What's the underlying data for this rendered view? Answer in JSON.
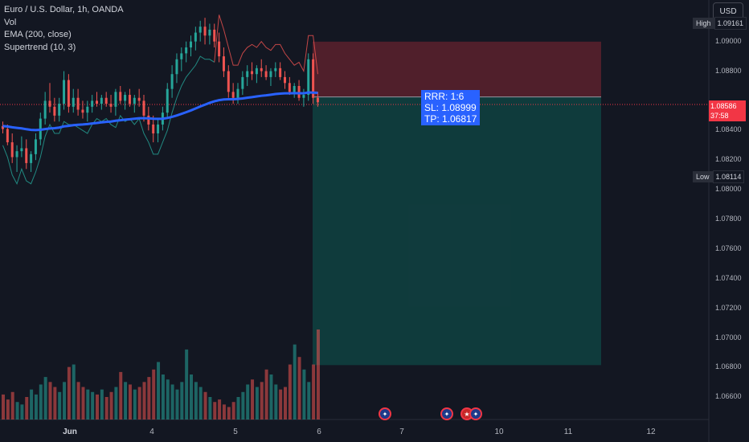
{
  "legend": {
    "symbol": "Euro / U.S. Dollar, 1h, OANDA",
    "vol": "Vol",
    "ema": "EMA (200, close)",
    "supertrend": "Supertrend (10, 3)"
  },
  "currency_button": "USD",
  "high_badge": {
    "label": "High",
    "value": "1.09161"
  },
  "low_badge": {
    "label": "Low",
    "value": "1.08114"
  },
  "price_tag": {
    "price": "1.08586",
    "countdown": "37:58"
  },
  "risk_reward": {
    "rrr": "RRR: 1:6",
    "sl": "SL: 1.08999",
    "tp": "TP: 1.06817"
  },
  "y_axis": {
    "labels": [
      "1.09000",
      "1.08800",
      "1.08400",
      "1.08200",
      "1.08000",
      "1.07800",
      "1.07600",
      "1.07400",
      "1.07200",
      "1.07000",
      "1.06800",
      "1.06600"
    ]
  },
  "x_axis": {
    "labels": [
      {
        "text": "Jun",
        "bold": true
      },
      {
        "text": "4",
        "bold": false
      },
      {
        "text": "5",
        "bold": false
      },
      {
        "text": "6",
        "bold": false
      },
      {
        "text": "7",
        "bold": false
      },
      {
        "text": "10",
        "bold": false
      },
      {
        "text": "11",
        "bold": false
      },
      {
        "text": "12",
        "bold": false
      }
    ]
  },
  "events": [
    {
      "name": "eu-event-icon"
    },
    {
      "name": "eu-event-icon"
    },
    {
      "name": "us-event-icon"
    },
    {
      "name": "eu-event-icon"
    }
  ],
  "colors": {
    "up": "#26a69a",
    "down": "#ef5350",
    "ema": "#2962ff",
    "stop_zone": "#f23645",
    "target_zone": "#089981",
    "background": "#131722"
  },
  "chart_data": {
    "type": "candlestick",
    "y_range": [
      1.0645,
      1.0928
    ],
    "candles": [
      [
        1.0843,
        1.0846,
        1.0838,
        1.0841
      ],
      [
        1.0841,
        1.0844,
        1.083,
        1.0832
      ],
      [
        1.0832,
        1.0838,
        1.0818,
        1.0822
      ],
      [
        1.0822,
        1.083,
        1.0812,
        1.0826
      ],
      [
        1.0826,
        1.0836,
        1.0822,
        1.0828
      ],
      [
        1.0828,
        1.0834,
        1.0814,
        1.0818
      ],
      [
        1.0818,
        1.0826,
        1.0812,
        1.0824
      ],
      [
        1.0824,
        1.0838,
        1.082,
        1.0834
      ],
      [
        1.0834,
        1.0852,
        1.083,
        1.0848
      ],
      [
        1.0848,
        1.0866,
        1.0844,
        1.086
      ],
      [
        1.086,
        1.0872,
        1.0852,
        1.0856
      ],
      [
        1.0856,
        1.0862,
        1.0846,
        1.085
      ],
      [
        1.085,
        1.0862,
        1.0846,
        1.0858
      ],
      [
        1.0858,
        1.088,
        1.0854,
        1.0874
      ],
      [
        1.0874,
        1.0878,
        1.0852,
        1.0856
      ],
      [
        1.0856,
        1.0868,
        1.0852,
        1.0862
      ],
      [
        1.0862,
        1.0868,
        1.085,
        1.0854
      ],
      [
        1.0854,
        1.086,
        1.0848,
        1.0852
      ],
      [
        1.0852,
        1.086,
        1.0846,
        1.0856
      ],
      [
        1.0856,
        1.0864,
        1.0852,
        1.086
      ],
      [
        1.086,
        1.0866,
        1.0856,
        1.0858
      ],
      [
        1.0858,
        1.0864,
        1.0854,
        1.0862
      ],
      [
        1.0862,
        1.0866,
        1.0856,
        1.0858
      ],
      [
        1.0858,
        1.0864,
        1.0852,
        1.0856
      ],
      [
        1.0856,
        1.0868,
        1.085,
        1.0866
      ],
      [
        1.0866,
        1.087,
        1.0858,
        1.086
      ],
      [
        1.086,
        1.0866,
        1.0854,
        1.0864
      ],
      [
        1.0864,
        1.0868,
        1.0856,
        1.0858
      ],
      [
        1.0858,
        1.0864,
        1.0852,
        1.0862
      ],
      [
        1.0862,
        1.0868,
        1.0856,
        1.086
      ],
      [
        1.086,
        1.0864,
        1.0846,
        1.085
      ],
      [
        1.085,
        1.0856,
        1.084,
        1.0844
      ],
      [
        1.0844,
        1.085,
        1.0832,
        1.0838
      ],
      [
        1.0838,
        1.0848,
        1.0832,
        1.0844
      ],
      [
        1.0844,
        1.0856,
        1.084,
        1.0852
      ],
      [
        1.0852,
        1.0872,
        1.0848,
        1.0868
      ],
      [
        1.0868,
        1.0884,
        1.0862,
        1.0878
      ],
      [
        1.0878,
        1.0892,
        1.0872,
        1.0888
      ],
      [
        1.0888,
        1.0896,
        1.088,
        1.0892
      ],
      [
        1.0892,
        1.09,
        1.0886,
        1.0896
      ],
      [
        1.0896,
        1.0904,
        1.089,
        1.09
      ],
      [
        1.09,
        1.091,
        1.0894,
        1.0906
      ],
      [
        1.0906,
        1.0914,
        1.09,
        1.091
      ],
      [
        1.091,
        1.0916,
        1.0898,
        1.0904
      ],
      [
        1.0904,
        1.0912,
        1.0898,
        1.0908
      ],
      [
        1.0908,
        1.0912,
        1.0896,
        1.09
      ],
      [
        1.09,
        1.0906,
        1.0886,
        1.089
      ],
      [
        1.089,
        1.0896,
        1.0876,
        1.088
      ],
      [
        1.088,
        1.0884,
        1.0862,
        1.0866
      ],
      [
        1.0866,
        1.0872,
        1.0858,
        1.0862
      ],
      [
        1.0862,
        1.0872,
        1.0858,
        1.0868
      ],
      [
        1.0868,
        1.088,
        1.0864,
        1.0876
      ],
      [
        1.0876,
        1.0884,
        1.087,
        1.088
      ],
      [
        1.088,
        1.0886,
        1.0874,
        1.0878
      ],
      [
        1.0878,
        1.0884,
        1.0872,
        1.0882
      ],
      [
        1.0882,
        1.0888,
        1.0876,
        1.088
      ],
      [
        1.088,
        1.0884,
        1.0874,
        1.0876
      ],
      [
        1.0876,
        1.0882,
        1.087,
        1.088
      ],
      [
        1.088,
        1.0886,
        1.0876,
        1.0882
      ],
      [
        1.0882,
        1.0886,
        1.0874,
        1.0876
      ],
      [
        1.0876,
        1.088,
        1.0868,
        1.0872
      ],
      [
        1.0872,
        1.0876,
        1.0864,
        1.0866
      ],
      [
        1.0866,
        1.0872,
        1.0862,
        1.087
      ],
      [
        1.087,
        1.0874,
        1.086,
        1.0862
      ],
      [
        1.0862,
        1.0868,
        1.0856,
        1.0864
      ],
      [
        1.0864,
        1.0892,
        1.086,
        1.0888
      ],
      [
        1.0888,
        1.0892,
        1.0858,
        1.0862
      ],
      [
        1.0862,
        1.0866,
        1.0856,
        1.0859
      ]
    ],
    "volumes": [
      20,
      16,
      22,
      14,
      12,
      18,
      24,
      20,
      28,
      34,
      30,
      26,
      22,
      30,
      42,
      44,
      30,
      26,
      24,
      22,
      20,
      24,
      18,
      22,
      26,
      38,
      30,
      28,
      24,
      26,
      30,
      34,
      40,
      46,
      36,
      32,
      28,
      24,
      30,
      56,
      36,
      30,
      26,
      22,
      18,
      14,
      16,
      12,
      10,
      14,
      18,
      22,
      28,
      32,
      26,
      30,
      40,
      36,
      28,
      24,
      26,
      44,
      60,
      50,
      40,
      30,
      44,
      72
    ]
  }
}
